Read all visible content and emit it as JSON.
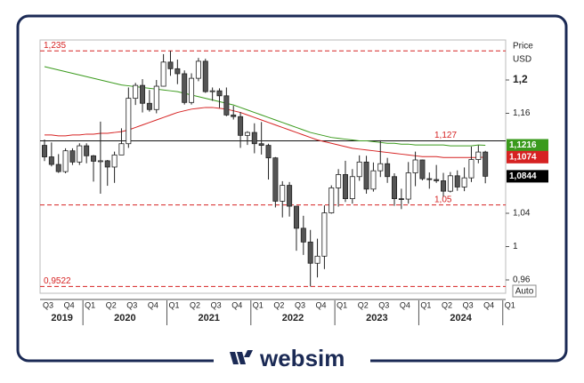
{
  "chart_data": {
    "type": "candlestick",
    "axis_title": "Price",
    "axis_unit": "USD",
    "scale_button": "Auto",
    "ylim": [
      0.944,
      1.248
    ],
    "yticks": [
      {
        "value": 1.2,
        "label": "1,2"
      },
      {
        "value": 1.16,
        "label": "1,16"
      },
      {
        "value": 1.04,
        "label": "1,04"
      },
      1,
      {
        "value": 0.96,
        "label": "0,96"
      }
    ],
    "categories": [
      "Q3",
      null,
      null,
      "Q4",
      null,
      null,
      "Q1",
      null,
      null,
      "Q2",
      null,
      null,
      "Q3",
      null,
      null,
      "Q4",
      null,
      null,
      "Q1",
      null,
      null,
      "Q2",
      null,
      null,
      "Q3",
      null,
      null,
      "Q4",
      null,
      null,
      "Q1",
      null,
      null,
      "Q2",
      null,
      null,
      "Q3",
      null,
      null,
      "Q4",
      null,
      null,
      "Q1",
      null,
      null,
      "Q2",
      null,
      null,
      "Q3",
      null,
      null,
      "Q4",
      null,
      null,
      "Q1",
      null,
      null,
      "Q2",
      null,
      null,
      "Q3",
      null,
      null,
      "Q4",
      null,
      null,
      "Q1"
    ],
    "years": [
      "2019",
      "2020",
      "2021",
      "2022",
      "2023",
      "2024"
    ],
    "ohlc": [
      [
        1.1215,
        1.1285,
        1.1027,
        1.1077
      ],
      [
        1.1077,
        1.125,
        1.0963,
        1.0986
      ],
      [
        1.0986,
        1.111,
        1.0885,
        1.09
      ],
      [
        1.09,
        1.118,
        1.088,
        1.115
      ],
      [
        1.115,
        1.118,
        1.098,
        1.1015
      ],
      [
        1.1015,
        1.124,
        1.098,
        1.121
      ],
      [
        1.121,
        1.124,
        1.1,
        1.109
      ],
      [
        1.109,
        1.11,
        1.078,
        1.1025
      ],
      [
        1.1025,
        1.15,
        1.0635,
        1.103
      ],
      [
        1.103,
        1.104,
        1.073,
        1.0955
      ],
      [
        1.0955,
        1.114,
        1.0765,
        1.11
      ],
      [
        1.11,
        1.142,
        1.11,
        1.1235
      ],
      [
        1.1235,
        1.191,
        1.1185,
        1.178
      ],
      [
        1.178,
        1.1965,
        1.17,
        1.1935
      ],
      [
        1.1935,
        1.201,
        1.161,
        1.172
      ],
      [
        1.172,
        1.188,
        1.162,
        1.1645
      ],
      [
        1.1645,
        1.2,
        1.16,
        1.1925
      ],
      [
        1.1925,
        1.231,
        1.192,
        1.2215
      ],
      [
        1.2215,
        1.235,
        1.205,
        1.2135
      ],
      [
        1.2135,
        1.2245,
        1.195,
        1.2075
      ],
      [
        1.2075,
        1.2115,
        1.1705,
        1.173
      ],
      [
        1.173,
        1.208,
        1.1705,
        1.202
      ],
      [
        1.202,
        1.2265,
        1.1985,
        1.2225
      ],
      [
        1.2225,
        1.2255,
        1.1845,
        1.186
      ],
      [
        1.186,
        1.191,
        1.175,
        1.187
      ],
      [
        1.187,
        1.19,
        1.1665,
        1.181
      ],
      [
        1.181,
        1.191,
        1.1565,
        1.158
      ],
      [
        1.158,
        1.169,
        1.1525,
        1.156
      ],
      [
        1.156,
        1.1615,
        1.1185,
        1.1335
      ],
      [
        1.1335,
        1.1385,
        1.122,
        1.137
      ],
      [
        1.137,
        1.148,
        1.112,
        1.1235
      ],
      [
        1.1235,
        1.1495,
        1.1105,
        1.1215
      ],
      [
        1.1215,
        1.1235,
        1.0805,
        1.1065
      ],
      [
        1.1065,
        1.1075,
        1.047,
        1.0545
      ],
      [
        1.0545,
        1.0785,
        1.035,
        1.0735
      ],
      [
        1.0735,
        1.0775,
        1.036,
        1.0485
      ],
      [
        1.0485,
        1.0485,
        0.995,
        1.022
      ],
      [
        1.022,
        1.037,
        0.99,
        1.0055
      ],
      [
        1.0055,
        1.02,
        0.9522,
        0.98
      ],
      [
        0.98,
        1.0095,
        0.963,
        0.9885
      ],
      [
        0.9885,
        1.0495,
        0.973,
        1.0405
      ],
      [
        1.0405,
        1.0735,
        1.0395,
        1.0705
      ],
      [
        1.0705,
        1.093,
        1.048,
        1.0865
      ],
      [
        1.0865,
        1.103,
        1.0535,
        1.0575
      ],
      [
        1.0575,
        1.093,
        1.0515,
        1.084
      ],
      [
        1.084,
        1.1095,
        1.079,
        1.1015
      ],
      [
        1.1015,
        1.109,
        1.0635,
        1.069
      ],
      [
        1.069,
        1.101,
        1.066,
        1.091
      ],
      [
        1.091,
        1.1276,
        1.0835,
        1.0995
      ],
      [
        1.0995,
        1.1065,
        1.0765,
        1.084
      ],
      [
        1.084,
        1.088,
        1.049,
        1.0575
      ],
      [
        1.0575,
        1.0695,
        1.045,
        1.057
      ],
      [
        1.057,
        1.1015,
        1.0515,
        1.0885
      ],
      [
        1.0885,
        1.114,
        1.0725,
        1.104
      ],
      [
        1.104,
        1.1045,
        1.0795,
        1.0815
      ],
      [
        1.0815,
        1.089,
        1.0695,
        1.0805
      ],
      [
        1.0805,
        1.098,
        1.0765,
        1.079
      ],
      [
        1.079,
        1.0885,
        1.06,
        1.0665
      ],
      [
        1.0665,
        1.0895,
        1.065,
        1.085
      ],
      [
        1.085,
        1.0915,
        1.067,
        1.0715
      ],
      [
        1.0715,
        1.095,
        1.0665,
        1.0825
      ],
      [
        1.0825,
        1.12,
        1.0775,
        1.1045
      ],
      [
        1.1045,
        1.1215,
        1.1,
        1.1135
      ],
      [
        1.1135,
        1.115,
        1.076,
        1.0844
      ],
      null,
      null,
      null
    ],
    "last_close_label": "1,0844",
    "up_color": "#ffffff",
    "down_color": "#555555",
    "series": [
      {
        "color": "#3a9a1c",
        "last_label": "1,1216",
        "values": [
          1.216,
          1.214,
          1.212,
          1.21,
          1.208,
          1.206,
          1.204,
          1.202,
          1.2,
          1.198,
          1.196,
          1.194,
          1.193,
          1.192,
          1.191,
          1.19,
          1.189,
          1.188,
          1.187,
          1.186,
          1.184,
          1.182,
          1.18,
          1.178,
          1.176,
          1.174,
          1.172,
          1.17,
          1.167,
          1.164,
          1.161,
          1.158,
          1.155,
          1.152,
          1.149,
          1.146,
          1.143,
          1.14,
          1.137,
          1.135,
          1.133,
          1.131,
          1.13,
          1.129,
          1.128,
          1.127,
          1.127,
          1.126,
          1.125,
          1.124,
          1.124,
          1.123,
          1.123,
          1.122,
          1.122,
          1.122,
          1.122,
          1.122,
          1.121,
          1.121,
          1.121,
          1.121,
          1.122,
          1.1216,
          null,
          null,
          null
        ]
      },
      {
        "color": "#d62222",
        "last_label": "1,1074",
        "values": [
          1.134,
          1.134,
          1.133,
          1.133,
          1.134,
          1.134,
          1.135,
          1.135,
          1.136,
          1.136,
          1.137,
          1.138,
          1.14,
          1.143,
          1.146,
          1.149,
          1.152,
          1.155,
          1.158,
          1.161,
          1.163,
          1.165,
          1.166,
          1.167,
          1.167,
          1.166,
          1.165,
          1.163,
          1.161,
          1.158,
          1.155,
          1.152,
          1.149,
          1.146,
          1.143,
          1.14,
          1.137,
          1.134,
          1.131,
          1.128,
          1.126,
          1.124,
          1.122,
          1.12,
          1.118,
          1.117,
          1.116,
          1.115,
          1.114,
          1.113,
          1.112,
          1.111,
          1.11,
          1.109,
          1.108,
          1.108,
          1.108,
          1.107,
          1.107,
          1.107,
          1.107,
          1.107,
          1.107,
          1.1074,
          null,
          null,
          null
        ]
      }
    ],
    "reference_lines": [
      {
        "value": 1.235,
        "label": "1,235",
        "style": "dashed",
        "color": "#d62222",
        "label_side": "left"
      },
      {
        "value": 1.127,
        "label": "1,127",
        "style": "solid",
        "color": "#111111",
        "label_side": "right"
      },
      {
        "value": 1.05,
        "label": "1,05",
        "style": "dashed",
        "color": "#d62222",
        "label_side": "right"
      },
      {
        "value": 0.9522,
        "label": "0,9522",
        "style": "dashed",
        "color": "#d62222",
        "label_side": "left"
      }
    ]
  },
  "brand": "websim"
}
